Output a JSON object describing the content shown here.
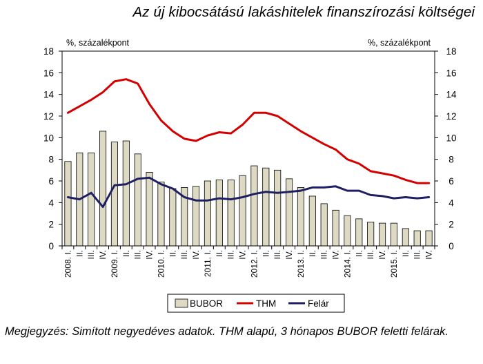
{
  "chart_data": {
    "type": "bar+line",
    "title": "Az új kibocsátású lakáshitelek finanszírozási költségei",
    "ylabel_left": "%, százalékpont",
    "ylabel_right": "%, százalékpont",
    "ylim": [
      0,
      18
    ],
    "yticks": [
      0,
      2,
      4,
      6,
      8,
      10,
      12,
      14,
      16,
      18
    ],
    "categories": [
      "2008. I.",
      "II.",
      "III.",
      "IV.",
      "2009. I.",
      "II.",
      "III.",
      "IV.",
      "2010. I.",
      "II.",
      "III.",
      "IV.",
      "2011. I.",
      "II.",
      "III.",
      "IV.",
      "2012. I.",
      "II.",
      "III.",
      "IV.",
      "2013. I.",
      "II.",
      "III.",
      "IV.",
      "2014. I.",
      "II.",
      "III.",
      "IV.",
      "2015. I.",
      "II.",
      "III.",
      "IV."
    ],
    "series": [
      {
        "name": "BUBOR",
        "type": "bar",
        "color": "#ddd9c3",
        "values": [
          7.8,
          8.6,
          8.6,
          10.6,
          9.6,
          9.7,
          8.5,
          6.8,
          5.9,
          5.3,
          5.4,
          5.5,
          6.0,
          6.1,
          6.1,
          6.5,
          7.4,
          7.2,
          7.0,
          6.2,
          5.4,
          4.6,
          3.9,
          3.3,
          2.8,
          2.5,
          2.2,
          2.1,
          2.1,
          1.6,
          1.4,
          1.4
        ]
      },
      {
        "name": "THM",
        "type": "line",
        "color": "#d40000",
        "values": [
          12.3,
          12.9,
          13.5,
          14.2,
          15.2,
          15.4,
          15.0,
          13.1,
          11.6,
          10.6,
          9.9,
          9.7,
          10.2,
          10.5,
          10.4,
          11.2,
          12.3,
          12.3,
          12.0,
          11.3,
          10.6,
          10.0,
          9.4,
          8.9,
          8.0,
          7.6,
          6.9,
          6.7,
          6.5,
          6.1,
          5.8,
          5.8
        ]
      },
      {
        "name": "Felár",
        "type": "line",
        "color": "#1f1f63",
        "values": [
          4.5,
          4.3,
          4.9,
          3.6,
          5.6,
          5.7,
          6.2,
          6.3,
          5.7,
          5.3,
          4.5,
          4.2,
          4.2,
          4.4,
          4.3,
          4.5,
          4.8,
          5.0,
          4.9,
          5.0,
          5.1,
          5.4,
          5.4,
          5.5,
          5.1,
          5.1,
          4.7,
          4.6,
          4.4,
          4.5,
          4.4,
          4.5
        ]
      }
    ],
    "legend_position": "bottom",
    "grid": false
  },
  "note": "Megjegyzés: Simított negyedéves adatok. THM alapú, 3 hónapos BUBOR feletti felárak."
}
